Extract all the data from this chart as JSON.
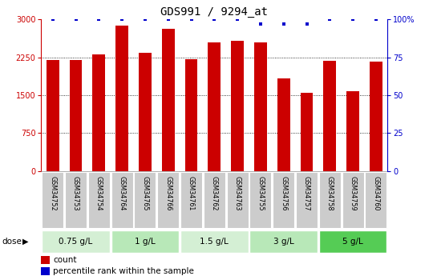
{
  "title": "GDS991 / 9294_at",
  "samples": [
    "GSM34752",
    "GSM34753",
    "GSM34754",
    "GSM34764",
    "GSM34765",
    "GSM34766",
    "GSM34761",
    "GSM34762",
    "GSM34763",
    "GSM34755",
    "GSM34756",
    "GSM34757",
    "GSM34758",
    "GSM34759",
    "GSM34760"
  ],
  "counts": [
    2200,
    2195,
    2310,
    2880,
    2340,
    2820,
    2210,
    2550,
    2575,
    2545,
    1840,
    1555,
    2180,
    1580,
    2170
  ],
  "percentile": [
    100,
    100,
    100,
    100,
    100,
    100,
    100,
    100,
    100,
    97,
    97,
    97,
    100,
    100,
    100
  ],
  "bar_color": "#cc0000",
  "percentile_color": "#0000cc",
  "dose_groups": [
    {
      "label": "0.75 g/L",
      "start": 0,
      "end": 3,
      "color": "#d4efd4"
    },
    {
      "label": "1 g/L",
      "start": 3,
      "end": 6,
      "color": "#b8e8b8"
    },
    {
      "label": "1.5 g/L",
      "start": 6,
      "end": 9,
      "color": "#d4efd4"
    },
    {
      "label": "3 g/L",
      "start": 9,
      "end": 12,
      "color": "#b8e8b8"
    },
    {
      "label": "5 g/L",
      "start": 12,
      "end": 15,
      "color": "#55cc55"
    }
  ],
  "ylim_left": [
    0,
    3000
  ],
  "ylim_right": [
    0,
    100
  ],
  "yticks_left": [
    0,
    750,
    1500,
    2250,
    3000
  ],
  "yticks_right": [
    0,
    25,
    50,
    75,
    100
  ],
  "grid_color": "#333333",
  "bg_color": "#ffffff",
  "tick_bg": "#cccccc",
  "left_color": "#cc0000",
  "right_color": "#0000cc"
}
